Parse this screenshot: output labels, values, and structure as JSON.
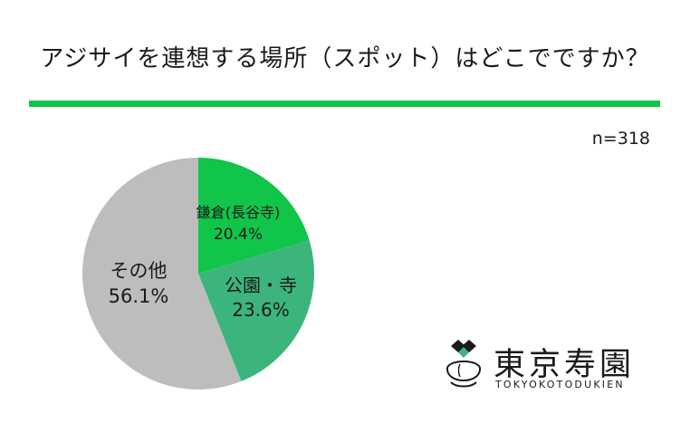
{
  "page": {
    "title": "アジサイを連想する場所（スポット）はどこでですか？",
    "sample_size": "n=318"
  },
  "logo": {
    "name": "東京寿園",
    "subtitle": "TOKYOKOTODUKIEN"
  },
  "chart_data": {
    "type": "pie",
    "start_angle": "12 o'clock",
    "direction": "clockwise",
    "slices": [
      {
        "label": "鎌倉(長谷寺)",
        "value": 20.4,
        "value_label": "20.4%",
        "color": "#11c44a",
        "label_color": "#1a1a1a"
      },
      {
        "label": "公園・寺",
        "value": 23.6,
        "value_label": "23.6%",
        "color": "#3cb57d",
        "label_color": "#1a1a1a"
      },
      {
        "label": "その他",
        "value": 56.1,
        "value_label": "56.1%",
        "color": "#bdbdbd",
        "label_color": "#1a1a1a"
      }
    ]
  },
  "colors": {
    "accent": "#11c44a",
    "background": "#ffffff"
  }
}
